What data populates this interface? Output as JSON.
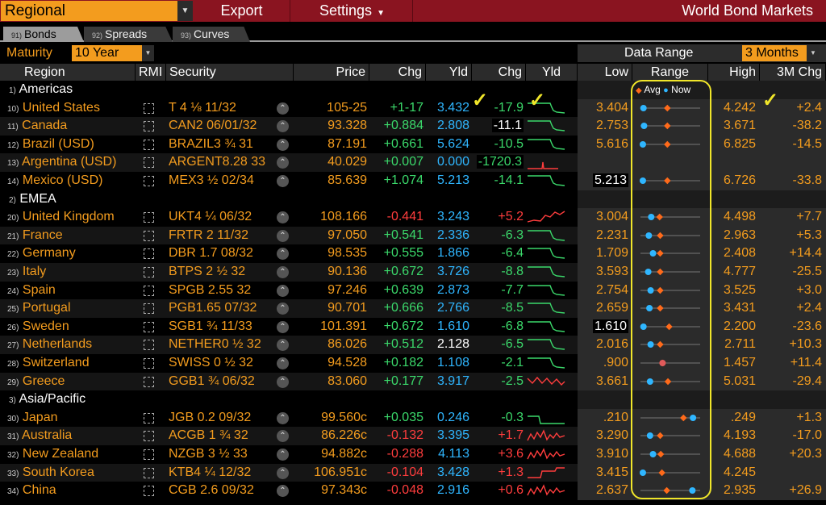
{
  "topbar": {
    "regional": "Regional",
    "export": "Export",
    "settings": "Settings",
    "title": "World Bond Markets"
  },
  "tabs": [
    {
      "num": "91)",
      "label": "Bonds"
    },
    {
      "num": "92)",
      "label": "Spreads"
    },
    {
      "num": "93)",
      "label": "Curves"
    }
  ],
  "controls": {
    "maturity_label": "Maturity",
    "maturity_value": "10 Year",
    "data_range_label": "Data Range",
    "data_range_value": "3 Months"
  },
  "headers": {
    "region": "Region",
    "rmi": "RMI",
    "security": "Security",
    "price": "Price",
    "chg": "Chg",
    "yld": "Yld",
    "chg2": "Chg",
    "yld2": "Yld",
    "low": "Low",
    "range": "Range",
    "high": "High",
    "chg3m": "3M Chg",
    "legend_avg": "Avg",
    "legend_now": "Now"
  },
  "colors": {
    "accent": "#f39c1e",
    "topbar": "#8a1420",
    "pos": "#3bd96b",
    "neg": "#ff3d3d",
    "yield": "#2fb6ff",
    "annotation": "#f0e62a"
  },
  "groups": [
    {
      "num": "1)",
      "name": "Americas",
      "rows": [
        {
          "num": "10)",
          "region": "United States",
          "sec": "T 4 1/8 11/32",
          "price": "105-25",
          "chg": "+1-17",
          "yld": "3.432",
          "ychg": "-17.9",
          "low": "3.404",
          "high": "4.242",
          "m3": "+2.4",
          "avg": 0.45,
          "now": 0.05,
          "spark": "flat-low"
        },
        {
          "num": "11)",
          "region": "Canada",
          "sec": "CAN2 06/01/32",
          "price": "93.328",
          "chg": "+0.884",
          "yld": "2.808",
          "ychg": "-11.1",
          "low": "2.753",
          "high": "3.671",
          "m3": "-38.2",
          "avg": 0.45,
          "now": 0.06,
          "spark": "flat-low"
        },
        {
          "num": "12)",
          "region": "Brazil (USD)",
          "sec": "BRAZIL3 3/4 31",
          "price": "87.191",
          "chg": "+0.661",
          "yld": "5.624",
          "ychg": "-10.5",
          "low": "5.616",
          "high": "6.825",
          "m3": "-14.5",
          "avg": 0.45,
          "now": 0.04,
          "spark": "flat-low"
        },
        {
          "num": "13)",
          "region": "Argentina (USD)",
          "sec": "ARGENT8.28 33",
          "price": "40.029",
          "chg": "+0.007",
          "yld": "0.000",
          "ychg": "-1720.3",
          "low": "",
          "high": "",
          "m3": "",
          "avg": null,
          "now": null,
          "spark": "drop"
        },
        {
          "num": "14)",
          "region": "Mexico (USD)",
          "sec": "MEX3 1/2 02/34",
          "price": "85.639",
          "chg": "+1.074",
          "yld": "5.213",
          "ychg": "-14.1",
          "low": "5.213",
          "high": "6.726",
          "m3": "-33.8",
          "avg": 0.45,
          "now": 0.04,
          "spark": "flat-low"
        }
      ]
    },
    {
      "num": "2)",
      "name": "EMEA",
      "rows": [
        {
          "num": "20)",
          "region": "United Kingdom",
          "sec": "UKT4 1/4 06/32",
          "price": "108.166",
          "chg": "-0.441",
          "yld": "3.243",
          "ychg": "+5.2",
          "low": "3.004",
          "high": "4.498",
          "m3": "+7.7",
          "avg": 0.32,
          "now": 0.18,
          "spark": "up"
        },
        {
          "num": "21)",
          "region": "France",
          "sec": "FRTR 2 11/32",
          "price": "97.050",
          "chg": "+0.541",
          "yld": "2.336",
          "ychg": "-6.3",
          "low": "2.231",
          "high": "2.963",
          "m3": "+5.3",
          "avg": 0.33,
          "now": 0.14,
          "spark": "flat-low"
        },
        {
          "num": "22)",
          "region": "Germany",
          "sec": "DBR 1.7 08/32",
          "price": "98.535",
          "chg": "+0.555",
          "yld": "1.866",
          "ychg": "-6.4",
          "low": "1.709",
          "high": "2.408",
          "m3": "+14.4",
          "avg": 0.33,
          "now": 0.21,
          "spark": "flat-low"
        },
        {
          "num": "23)",
          "region": "Italy",
          "sec": "BTPS 2 1/2 32",
          "price": "90.136",
          "chg": "+0.672",
          "yld": "3.726",
          "ychg": "-8.8",
          "low": "3.593",
          "high": "4.777",
          "m3": "-25.5",
          "avg": 0.33,
          "now": 0.13,
          "spark": "flat-low"
        },
        {
          "num": "24)",
          "region": "Spain",
          "sec": "SPGB 2.55 32",
          "price": "97.246",
          "chg": "+0.639",
          "yld": "2.873",
          "ychg": "-7.7",
          "low": "2.754",
          "high": "3.525",
          "m3": "+3.0",
          "avg": 0.33,
          "now": 0.17,
          "spark": "flat-low"
        },
        {
          "num": "25)",
          "region": "Portugal",
          "sec": "PGB1.65 07/32",
          "price": "90.701",
          "chg": "+0.666",
          "yld": "2.766",
          "ychg": "-8.5",
          "low": "2.659",
          "high": "3.431",
          "m3": "+2.4",
          "avg": 0.33,
          "now": 0.15,
          "spark": "flat-low"
        },
        {
          "num": "26)",
          "region": "Sweden",
          "sec": "SGB1 3/4 11/33",
          "price": "101.391",
          "chg": "+0.672",
          "yld": "1.610",
          "ychg": "-6.8",
          "low": "1.610",
          "high": "2.200",
          "m3": "-23.6",
          "avg": 0.48,
          "now": 0.05,
          "spark": "flat-low"
        },
        {
          "num": "27)",
          "region": "Netherlands",
          "sec": "NETHER0 1/2 32",
          "price": "86.026",
          "chg": "+0.512",
          "yld": "2.128",
          "ychg": "-6.5",
          "low": "2.016",
          "high": "2.711",
          "m3": "+10.3",
          "avg": 0.33,
          "now": 0.17,
          "spark": "flat-low"
        },
        {
          "num": "28)",
          "region": "Switzerland",
          "sec": "SWISS 0 1/2 32",
          "price": "94.528",
          "chg": "+0.182",
          "yld": "1.108",
          "ychg": "-2.1",
          "low": ".900",
          "high": "1.457",
          "m3": "+11.4",
          "avg": 0.37,
          "now": 0.37,
          "spark": "flat-low"
        },
        {
          "num": "29)",
          "region": "Greece",
          "sec": "GGB1 3/4 06/32",
          "price": "83.060",
          "chg": "+0.177",
          "yld": "3.917",
          "ychg": "-2.5",
          "low": "3.661",
          "high": "5.031",
          "m3": "-29.4",
          "avg": 0.46,
          "now": 0.16,
          "spark": "bumpy"
        }
      ]
    },
    {
      "num": "3)",
      "name": "Asia/Pacific",
      "rows": [
        {
          "num": "30)",
          "region": "Japan",
          "sec": "JGB 0.2 09/32",
          "price": "99.560c",
          "chg": "+0.035",
          "yld": "0.246",
          "ychg": "-0.3",
          "low": ".210",
          "high": ".249",
          "m3": "+1.3",
          "avg": 0.72,
          "now": 0.88,
          "spark": "step"
        },
        {
          "num": "31)",
          "region": "Australia",
          "sec": "ACGB 1 3/4 32",
          "price": "86.226c",
          "chg": "-0.132",
          "yld": "3.395",
          "ychg": "+1.7",
          "low": "3.290",
          "high": "4.193",
          "m3": "-17.0",
          "avg": 0.33,
          "now": 0.16,
          "spark": "jag"
        },
        {
          "num": "32)",
          "region": "New Zealand",
          "sec": "NZGB 3 1/2 33",
          "price": "94.882c",
          "chg": "-0.288",
          "yld": "4.113",
          "ychg": "+3.6",
          "low": "3.910",
          "high": "4.688",
          "m3": "+20.3",
          "avg": 0.34,
          "now": 0.21,
          "spark": "jag"
        },
        {
          "num": "33)",
          "region": "South Korea",
          "sec": "KTB4 1/4 12/32",
          "price": "106.951c",
          "chg": "-0.104",
          "yld": "3.428",
          "ychg": "+1.3",
          "low": "3.415",
          "high": "4.245",
          "m3": "",
          "avg": 0.36,
          "now": 0.04,
          "spark": "up-step"
        },
        {
          "num": "34)",
          "region": "China",
          "sec": "CGB 2.6 09/32",
          "price": "97.343c",
          "chg": "-0.048",
          "yld": "2.916",
          "ychg": "+0.6",
          "low": "2.637",
          "high": "2.935",
          "m3": "+26.9",
          "avg": 0.44,
          "now": 0.87,
          "spark": "jag"
        }
      ]
    }
  ]
}
